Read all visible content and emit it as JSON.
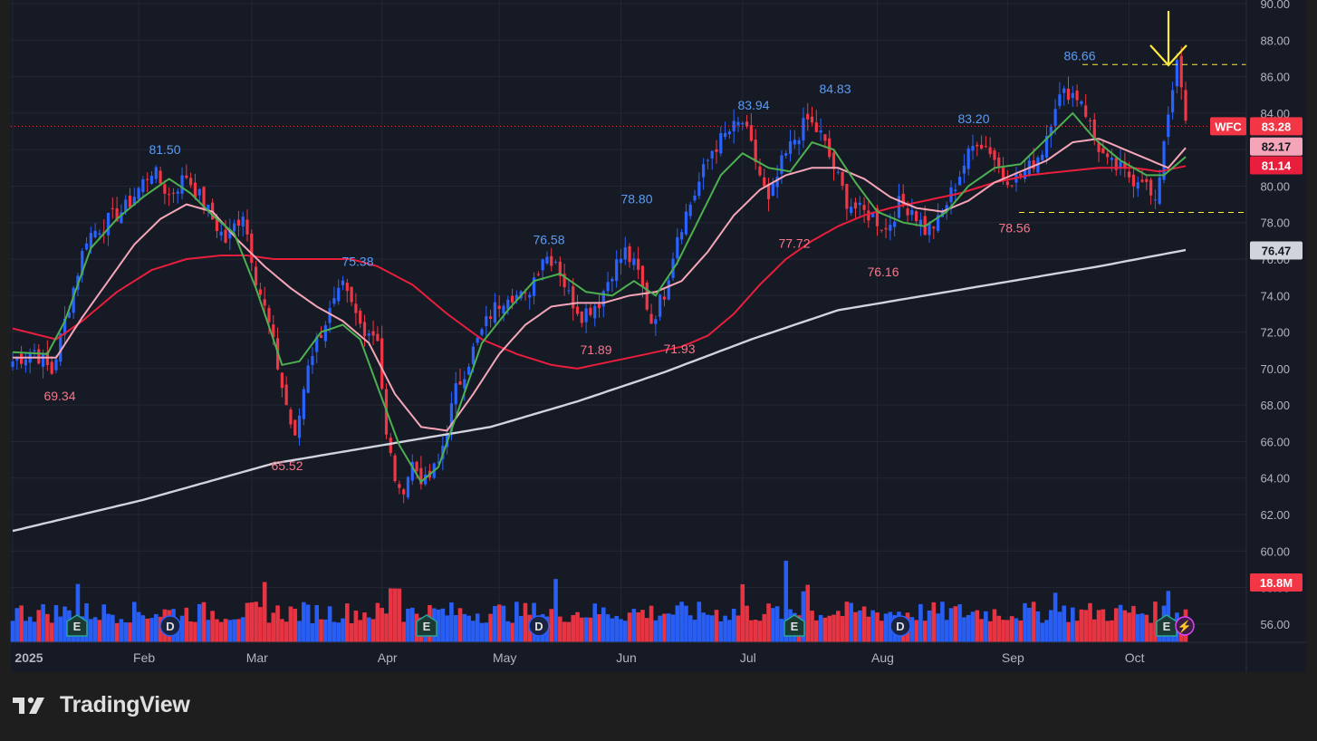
{
  "watermark": {
    "brand_name": "TradingView"
  },
  "colors": {
    "background": "#1e1e1e",
    "chart_background": "#161a25",
    "up_candle": "#2962ff",
    "down_candle": "#f23645",
    "sma_fast": "#4caf50",
    "sma_mid": "#f4a6b8",
    "sma_slow": "#e91e3c",
    "sma_long": "#d1d4dc",
    "annotation_arrow": "#ffeb3b",
    "high_label": "#5b9cf6",
    "low_label": "#f7778a"
  },
  "chart_data": {
    "type": "candlestick",
    "symbol": "WFC",
    "x_labels": [
      "2025",
      "Feb",
      "Mar",
      "Apr",
      "May",
      "Jun",
      "Jul",
      "Aug",
      "Sep",
      "Oct"
    ],
    "y_ticks": [
      "56.00",
      "58.00",
      "60.00",
      "62.00",
      "64.00",
      "66.00",
      "68.00",
      "70.00",
      "72.00",
      "74.00",
      "76.00",
      "78.00",
      "80.00",
      "82.00",
      "84.00",
      "86.00",
      "88.00",
      "90.00"
    ],
    "ylim": [
      55,
      90.2
    ],
    "last_price": "83.28",
    "price_badges": [
      {
        "label": "82.17",
        "value": 82.17,
        "color": "#f4a6b8",
        "text_color": "#131722"
      },
      {
        "label": "81.14",
        "value": 81.14,
        "color": "#e91e3c",
        "text_color": "#ffffff"
      },
      {
        "label": "76.47",
        "value": 76.47,
        "color": "#d1d4dc",
        "text_color": "#131722"
      }
    ],
    "volume_badge": "18.8M",
    "high_labels": [
      {
        "text": "81.50",
        "value": 81.5
      },
      {
        "text": "75.38",
        "value": 75.38
      },
      {
        "text": "76.58",
        "value": 76.58
      },
      {
        "text": "78.80",
        "value": 78.8
      },
      {
        "text": "83.94",
        "value": 83.94
      },
      {
        "text": "84.83",
        "value": 84.83
      },
      {
        "text": "83.20",
        "value": 83.2
      },
      {
        "text": "86.66",
        "value": 86.66
      }
    ],
    "low_labels": [
      {
        "text": "69.34",
        "value": 69.34
      },
      {
        "text": "65.52",
        "value": 65.52
      },
      {
        "text": "71.89",
        "value": 71.89
      },
      {
        "text": "71.93",
        "value": 71.93
      },
      {
        "text": "77.72",
        "value": 77.72
      },
      {
        "text": "76.16",
        "value": 76.16
      },
      {
        "text": "78.56",
        "value": 78.56
      }
    ],
    "horizontal_levels": [
      86.66,
      78.56
    ],
    "event_markers": [
      "E",
      "D",
      "E",
      "D",
      "E",
      "D",
      "E",
      "⚡"
    ],
    "anchors": [
      [
        0,
        70.4
      ],
      [
        5,
        71.0
      ],
      [
        9,
        69.8
      ],
      [
        13,
        73.5
      ],
      [
        17,
        77.2
      ],
      [
        22,
        78.1
      ],
      [
        26,
        78.8
      ],
      [
        32,
        80.9
      ],
      [
        36,
        79.5
      ],
      [
        40,
        80.6
      ],
      [
        45,
        78.6
      ],
      [
        49,
        77.0
      ],
      [
        53,
        78.6
      ],
      [
        56,
        75.0
      ],
      [
        59,
        72.4
      ],
      [
        62,
        69.0
      ],
      [
        65,
        66.0
      ],
      [
        68,
        70.4
      ],
      [
        72,
        72.6
      ],
      [
        76,
        74.4
      ],
      [
        80,
        72.4
      ],
      [
        84,
        71.8
      ],
      [
        86,
        66.2
      ],
      [
        89,
        63.0
      ],
      [
        92,
        64.8
      ],
      [
        95,
        63.7
      ],
      [
        98,
        64.8
      ],
      [
        102,
        68.8
      ],
      [
        106,
        71.0
      ],
      [
        110,
        73.0
      ],
      [
        114,
        74.2
      ],
      [
        118,
        73.8
      ],
      [
        122,
        76.2
      ],
      [
        125,
        76.0
      ],
      [
        128,
        74.0
      ],
      [
        131,
        73.0
      ],
      [
        135,
        73.7
      ],
      [
        138,
        75.4
      ],
      [
        141,
        76.4
      ],
      [
        144,
        75.2
      ],
      [
        147,
        72.6
      ],
      [
        150,
        74.2
      ],
      [
        153,
        77.4
      ],
      [
        157,
        79.6
      ],
      [
        161,
        82.0
      ],
      [
        165,
        83.0
      ],
      [
        168,
        83.5
      ],
      [
        171,
        81.4
      ],
      [
        174,
        79.0
      ],
      [
        177,
        81.2
      ],
      [
        180,
        82.6
      ],
      [
        183,
        83.6
      ],
      [
        186,
        82.8
      ],
      [
        189,
        81.0
      ],
      [
        192,
        79.2
      ],
      [
        195,
        78.6
      ],
      [
        198,
        78.4
      ],
      [
        201,
        77.6
      ],
      [
        204,
        79.0
      ],
      [
        207,
        78.8
      ],
      [
        210,
        77.6
      ],
      [
        213,
        78.0
      ],
      [
        216,
        79.6
      ],
      [
        219,
        81.2
      ],
      [
        222,
        82.6
      ],
      [
        225,
        82.0
      ],
      [
        228,
        80.6
      ],
      [
        231,
        80.4
      ],
      [
        234,
        81.0
      ],
      [
        237,
        82.0
      ],
      [
        240,
        84.6
      ],
      [
        243,
        85.2
      ],
      [
        246,
        84.8
      ],
      [
        249,
        82.6
      ],
      [
        252,
        81.2
      ],
      [
        255,
        80.9
      ],
      [
        258,
        80.4
      ],
      [
        260,
        80.6
      ],
      [
        262,
        79.4
      ],
      [
        263,
        78.8
      ],
      [
        265,
        82.6
      ],
      [
        267,
        85.6
      ],
      [
        268,
        86.5
      ],
      [
        269,
        85.3
      ],
      [
        270,
        83.3
      ]
    ],
    "sma_fast_anchors": [
      [
        0,
        70.9
      ],
      [
        8,
        70.8
      ],
      [
        12,
        72.6
      ],
      [
        18,
        76.6
      ],
      [
        24,
        78.2
      ],
      [
        30,
        79.4
      ],
      [
        36,
        80.4
      ],
      [
        41,
        79.6
      ],
      [
        46,
        78.4
      ],
      [
        51,
        77.4
      ],
      [
        56,
        74.4
      ],
      [
        62,
        70.2
      ],
      [
        66,
        70.4
      ],
      [
        71,
        72.0
      ],
      [
        76,
        72.4
      ],
      [
        80,
        71.6
      ],
      [
        84,
        69.0
      ],
      [
        89,
        65.8
      ],
      [
        94,
        63.8
      ],
      [
        98,
        64.6
      ],
      [
        103,
        68.0
      ],
      [
        108,
        71.4
      ],
      [
        114,
        73.2
      ],
      [
        120,
        74.8
      ],
      [
        126,
        75.2
      ],
      [
        132,
        74.2
      ],
      [
        138,
        74.0
      ],
      [
        143,
        74.8
      ],
      [
        148,
        74.0
      ],
      [
        153,
        75.8
      ],
      [
        158,
        78.2
      ],
      [
        163,
        80.6
      ],
      [
        168,
        81.8
      ],
      [
        174,
        81.0
      ],
      [
        179,
        80.8
      ],
      [
        184,
        82.4
      ],
      [
        189,
        82.0
      ],
      [
        194,
        80.2
      ],
      [
        199,
        78.6
      ],
      [
        205,
        78.0
      ],
      [
        210,
        77.8
      ],
      [
        215,
        78.6
      ],
      [
        220,
        80.0
      ],
      [
        226,
        81.0
      ],
      [
        232,
        81.2
      ],
      [
        238,
        82.6
      ],
      [
        244,
        84.0
      ],
      [
        249,
        82.6
      ],
      [
        255,
        81.4
      ],
      [
        261,
        80.6
      ],
      [
        265,
        80.6
      ],
      [
        268,
        81.2
      ],
      [
        270,
        81.6
      ]
    ],
    "sma_mid_anchors": [
      [
        0,
        70.6
      ],
      [
        10,
        70.6
      ],
      [
        16,
        72.8
      ],
      [
        22,
        74.8
      ],
      [
        28,
        76.8
      ],
      [
        34,
        78.2
      ],
      [
        40,
        79.0
      ],
      [
        46,
        78.6
      ],
      [
        52,
        77.0
      ],
      [
        58,
        75.6
      ],
      [
        64,
        74.4
      ],
      [
        70,
        73.4
      ],
      [
        76,
        72.6
      ],
      [
        82,
        71.4
      ],
      [
        88,
        68.6
      ],
      [
        94,
        66.8
      ],
      [
        100,
        66.6
      ],
      [
        106,
        68.6
      ],
      [
        112,
        70.8
      ],
      [
        118,
        72.4
      ],
      [
        124,
        73.4
      ],
      [
        130,
        73.6
      ],
      [
        136,
        73.6
      ],
      [
        142,
        74.0
      ],
      [
        148,
        74.2
      ],
      [
        154,
        74.8
      ],
      [
        160,
        76.4
      ],
      [
        166,
        78.4
      ],
      [
        172,
        79.8
      ],
      [
        178,
        80.6
      ],
      [
        184,
        81.0
      ],
      [
        190,
        81.0
      ],
      [
        196,
        80.4
      ],
      [
        202,
        79.4
      ],
      [
        208,
        78.8
      ],
      [
        214,
        78.6
      ],
      [
        220,
        79.2
      ],
      [
        226,
        80.2
      ],
      [
        232,
        80.8
      ],
      [
        238,
        81.4
      ],
      [
        244,
        82.4
      ],
      [
        250,
        82.6
      ],
      [
        256,
        82.0
      ],
      [
        262,
        81.4
      ],
      [
        266,
        81.0
      ],
      [
        270,
        82.1
      ]
    ],
    "sma_slow_anchors": [
      [
        0,
        72.2
      ],
      [
        10,
        71.6
      ],
      [
        16,
        72.6
      ],
      [
        24,
        74.2
      ],
      [
        32,
        75.4
      ],
      [
        40,
        76.0
      ],
      [
        48,
        76.2
      ],
      [
        54,
        76.2
      ],
      [
        60,
        76.0
      ],
      [
        66,
        76.0
      ],
      [
        72,
        76.0
      ],
      [
        78,
        76.0
      ],
      [
        84,
        75.6
      ],
      [
        92,
        74.6
      ],
      [
        100,
        73.0
      ],
      [
        108,
        71.6
      ],
      [
        116,
        70.8
      ],
      [
        124,
        70.2
      ],
      [
        130,
        70.0
      ],
      [
        138,
        70.4
      ],
      [
        146,
        70.8
      ],
      [
        154,
        71.2
      ],
      [
        160,
        71.8
      ],
      [
        166,
        73.0
      ],
      [
        172,
        74.6
      ],
      [
        178,
        76.0
      ],
      [
        184,
        77.0
      ],
      [
        190,
        77.8
      ],
      [
        196,
        78.4
      ],
      [
        202,
        78.8
      ],
      [
        210,
        79.2
      ],
      [
        218,
        79.6
      ],
      [
        226,
        80.2
      ],
      [
        234,
        80.6
      ],
      [
        242,
        80.8
      ],
      [
        250,
        81.0
      ],
      [
        258,
        81.0
      ],
      [
        264,
        80.8
      ],
      [
        270,
        81.1
      ]
    ],
    "sma_long_anchors": [
      [
        0,
        61.1
      ],
      [
        30,
        62.8
      ],
      [
        60,
        64.8
      ],
      [
        90,
        66.0
      ],
      [
        110,
        66.8
      ],
      [
        130,
        68.2
      ],
      [
        150,
        69.8
      ],
      [
        170,
        71.6
      ],
      [
        190,
        73.2
      ],
      [
        210,
        74.0
      ],
      [
        230,
        74.8
      ],
      [
        250,
        75.6
      ],
      [
        270,
        76.5
      ]
    ]
  }
}
